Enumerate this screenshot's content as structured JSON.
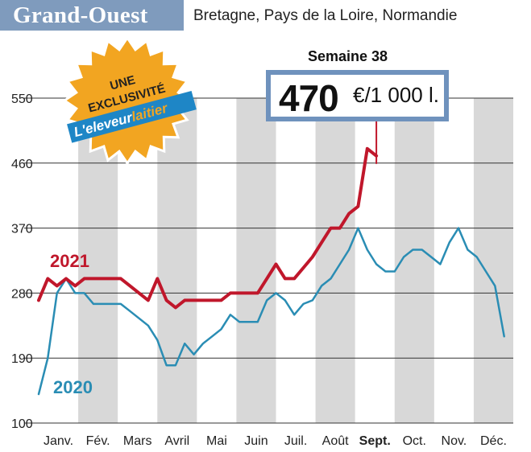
{
  "header": {
    "region": "Grand-Ouest",
    "subregions": "Bretagne, Pays de la Loire, Normandie"
  },
  "badge": {
    "line1": "UNE",
    "line2": "EXCLUSIVITÉ",
    "brand_part1": "L'eleveur",
    "brand_part2": "laitier",
    "colors": {
      "star": "#f2a521",
      "ribbon": "#1e86c6",
      "brand_part2": "#f2a521"
    }
  },
  "callout": {
    "week": "Semaine 38",
    "value": "470",
    "unit": "€/1 000 l."
  },
  "colors": {
    "series_2021": "#c0172b",
    "series_2020": "#2a8db4",
    "band": "#d8d8d8",
    "axis": "#333333"
  },
  "chart_data": {
    "type": "line",
    "title": "",
    "xlabel": "",
    "ylabel": "",
    "ylim": [
      100,
      550
    ],
    "yticks": [
      100,
      190,
      280,
      370,
      460,
      550
    ],
    "xlim": [
      1,
      52
    ],
    "categories": [
      "Janv.",
      "Fév.",
      "Mars",
      "Avril",
      "Mai",
      "Juin",
      "Juil.",
      "Août",
      "Sept.",
      "Oct.",
      "Nov.",
      "Déc."
    ],
    "highlighted_category": "Sept.",
    "bands": "alternating months shaded grey (Fév., Avril, Juin, Août, Oct., Déc.)",
    "series": [
      {
        "name": "2021",
        "x": [
          1,
          2,
          3,
          4,
          5,
          6,
          7,
          8,
          9,
          10,
          11,
          12,
          13,
          14,
          15,
          16,
          17,
          18,
          19,
          20,
          21,
          22,
          23,
          24,
          25,
          26,
          27,
          28,
          29,
          30,
          31,
          32,
          33,
          34,
          35,
          36,
          37,
          38
        ],
        "values": [
          270,
          300,
          290,
          300,
          290,
          300,
          300,
          300,
          300,
          300,
          290,
          280,
          270,
          300,
          270,
          260,
          270,
          270,
          270,
          270,
          270,
          280,
          280,
          280,
          280,
          300,
          320,
          300,
          300,
          315,
          330,
          350,
          370,
          370,
          390,
          400,
          480,
          470
        ]
      },
      {
        "name": "2020",
        "x": [
          1,
          2,
          3,
          4,
          5,
          6,
          7,
          8,
          9,
          10,
          11,
          12,
          13,
          14,
          15,
          16,
          17,
          18,
          19,
          20,
          21,
          22,
          23,
          24,
          25,
          26,
          27,
          28,
          29,
          30,
          31,
          32,
          33,
          34,
          35,
          36,
          37,
          38,
          39,
          40,
          41,
          42,
          43,
          44,
          45,
          46,
          47,
          48,
          49,
          50,
          51,
          52
        ],
        "values": [
          140,
          190,
          280,
          300,
          280,
          280,
          265,
          265,
          265,
          265,
          255,
          245,
          235,
          215,
          180,
          180,
          210,
          195,
          210,
          220,
          230,
          250,
          240,
          240,
          240,
          270,
          280,
          270,
          250,
          265,
          270,
          290,
          300,
          320,
          340,
          370,
          340,
          320,
          310,
          310,
          330,
          340,
          340,
          330,
          320,
          350,
          370,
          340,
          330,
          310,
          290,
          220
        ]
      }
    ],
    "annotations": [
      "2021",
      "2020"
    ]
  }
}
